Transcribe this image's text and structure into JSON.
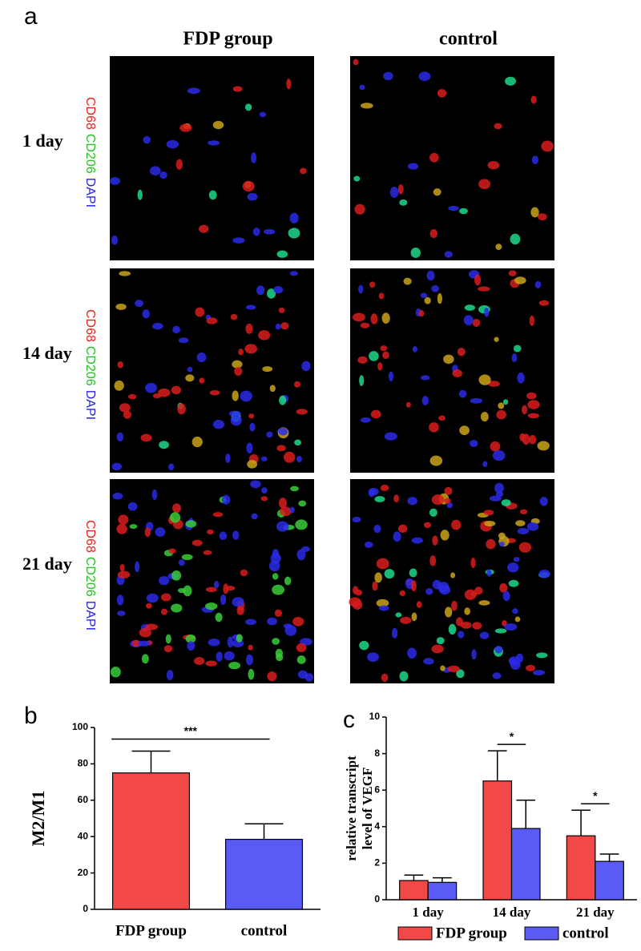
{
  "panel_a": {
    "label": "a",
    "columns": [
      "FDP group",
      "control"
    ],
    "rows": [
      "1 day",
      "14 day",
      "21 day"
    ],
    "stain": [
      "CD68",
      "CD206",
      "DAPI"
    ]
  },
  "chart_data": [
    {
      "type": "bar",
      "panel": "b",
      "ylabel": "M2/M1",
      "categories": [
        "FDP group",
        "control"
      ],
      "values": [
        75,
        38.5
      ],
      "errors": [
        12,
        8.5
      ],
      "colors": [
        "#f24848",
        "#5a5af5"
      ],
      "ylim": [
        0,
        100
      ],
      "yticks": [
        0,
        20,
        40,
        60,
        80,
        100
      ],
      "annotations": [
        "***"
      ]
    },
    {
      "type": "grouped-bar",
      "panel": "c",
      "ylabel": [
        "relative transcript",
        "level of VEGF"
      ],
      "categories": [
        "1 day",
        "14 day",
        "21 day"
      ],
      "series": [
        {
          "name": "FDP group",
          "color": "#f24848",
          "values": [
            1.05,
            6.5,
            3.5
          ],
          "errors": [
            0.3,
            1.65,
            1.4
          ]
        },
        {
          "name": "control",
          "color": "#5a5af5",
          "values": [
            0.95,
            3.9,
            2.1
          ],
          "errors": [
            0.25,
            1.55,
            0.4
          ]
        }
      ],
      "ylim": [
        0,
        10
      ],
      "yticks": [
        0,
        2,
        4,
        6,
        8,
        10
      ],
      "annotations": [
        "*",
        "*"
      ]
    }
  ]
}
